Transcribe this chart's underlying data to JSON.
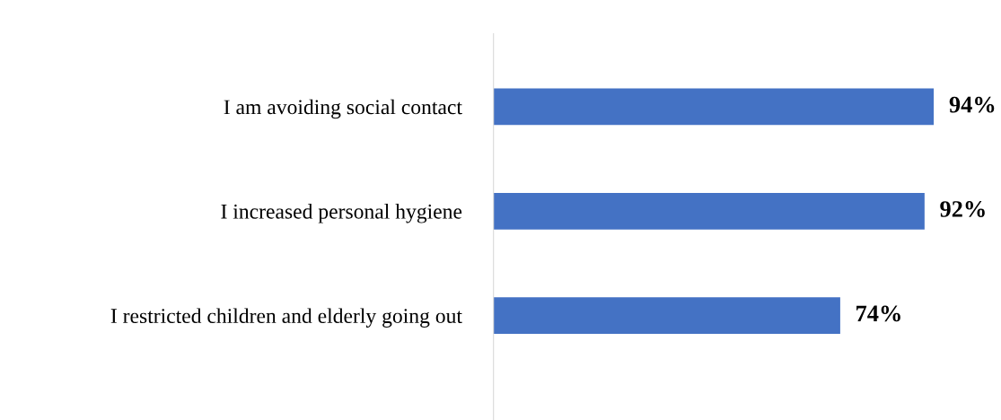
{
  "chart_data": {
    "type": "bar",
    "orientation": "horizontal",
    "categories": [
      "I am avoiding social contact",
      "I increased personal hygiene",
      "I restricted children and elderly going out"
    ],
    "values": [
      94,
      92,
      74
    ],
    "value_labels": [
      "94%",
      "92%",
      "74%"
    ],
    "color": "#4472c4",
    "grid": false,
    "legend": false,
    "tick_labels": "y"
  }
}
